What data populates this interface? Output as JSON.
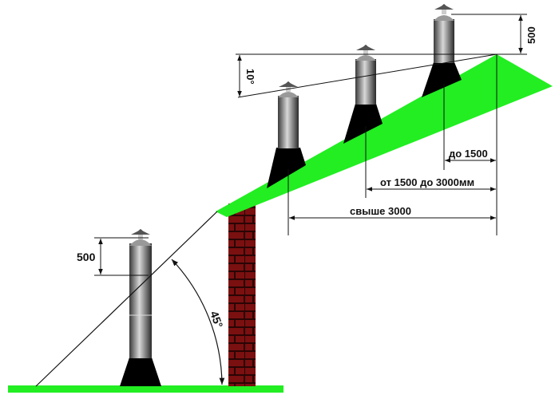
{
  "labels": {
    "top_height": "500",
    "angle_10": "10°",
    "dist_upto_1500": "до 1500",
    "dist_1500_3000": "от 1500 до 3000мм",
    "dist_over_3000": "свыше 3000",
    "left_height": "500",
    "angle_45": "45°"
  },
  "colors": {
    "roof": "#22ee22",
    "ground": "#22ee22",
    "brick": "#7a1010",
    "mortar": "#2a0505",
    "chimney_skirt": "#000000",
    "chimney_pipe": "#8a8a8a"
  }
}
